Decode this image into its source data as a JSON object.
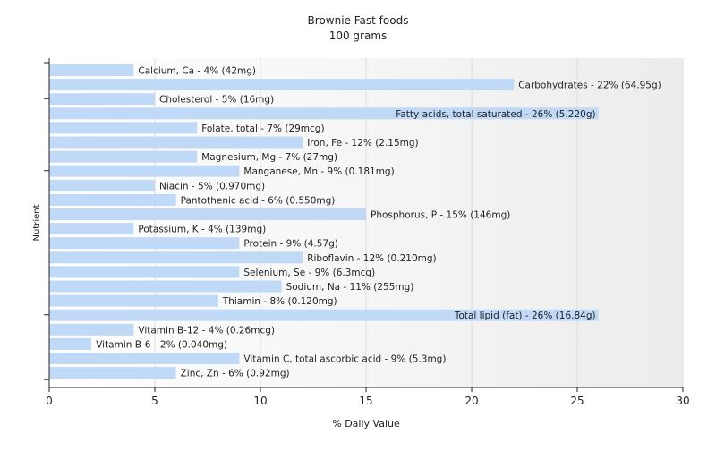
{
  "chart_data": {
    "type": "bar",
    "orientation": "horizontal",
    "title": "Brownie Fast foods",
    "subtitle": "100 grams",
    "xlabel": "% Daily Value",
    "ylabel": "Nutrient",
    "xlim": [
      0,
      30
    ],
    "xticks": [
      0,
      5,
      10,
      15,
      20,
      25,
      30
    ],
    "grid": "vertical",
    "legend": "none",
    "bar_color": "#bfd9f7",
    "categories": [
      "Calcium, Ca",
      "Carbohydrates",
      "Cholesterol",
      "Fatty acids, total saturated",
      "Folate, total",
      "Iron, Fe",
      "Magnesium, Mg",
      "Manganese, Mn",
      "Niacin",
      "Pantothenic acid",
      "Phosphorus, P",
      "Potassium, K",
      "Protein",
      "Riboflavin",
      "Selenium, Se",
      "Sodium, Na",
      "Thiamin",
      "Total lipid (fat)",
      "Vitamin B-12",
      "Vitamin B-6",
      "Vitamin C, total ascorbic acid",
      "Zinc, Zn"
    ],
    "values": [
      4,
      22,
      5,
      26,
      7,
      12,
      7,
      9,
      5,
      6,
      15,
      4,
      9,
      12,
      9,
      11,
      8,
      26,
      4,
      2,
      9,
      6
    ],
    "data_labels": [
      "Calcium, Ca - 4% (42mg)",
      "Carbohydrates - 22% (64.95g)",
      "Cholesterol - 5% (16mg)",
      "Fatty acids, total saturated - 26% (5.220g)",
      "Folate, total - 7% (29mcg)",
      "Iron, Fe - 12% (2.15mg)",
      "Magnesium, Mg - 7% (27mg)",
      "Manganese, Mn - 9% (0.181mg)",
      "Niacin - 5% (0.970mg)",
      "Pantothenic acid - 6% (0.550mg)",
      "Phosphorus, P - 15% (146mg)",
      "Potassium, K - 4% (139mg)",
      "Protein - 9% (4.57g)",
      "Riboflavin - 12% (0.210mg)",
      "Selenium, Se - 9% (6.3mcg)",
      "Sodium, Na - 11% (255mg)",
      "Thiamin - 8% (0.120mg)",
      "Total lipid (fat) - 26% (16.84g)",
      "Vitamin B-12 - 4% (0.26mcg)",
      "Vitamin B-6 - 2% (0.040mg)",
      "Vitamin C, total ascorbic acid - 9% (5.3mg)",
      "Zinc, Zn - 6% (0.92mg)"
    ]
  }
}
